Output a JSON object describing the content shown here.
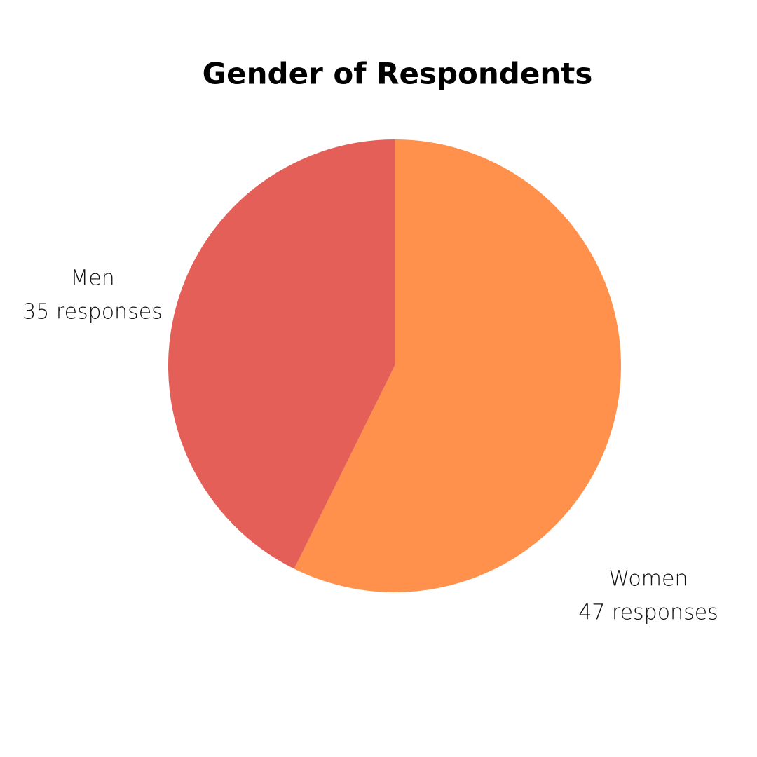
{
  "chart_data": {
    "type": "pie",
    "title": "Gender of Respondents",
    "categories": [
      "Women",
      "Men"
    ],
    "values": [
      47,
      35
    ],
    "value_labels": [
      "47 responses",
      "35 responses"
    ],
    "colors": [
      "#ff914d",
      "#e45f58"
    ]
  }
}
